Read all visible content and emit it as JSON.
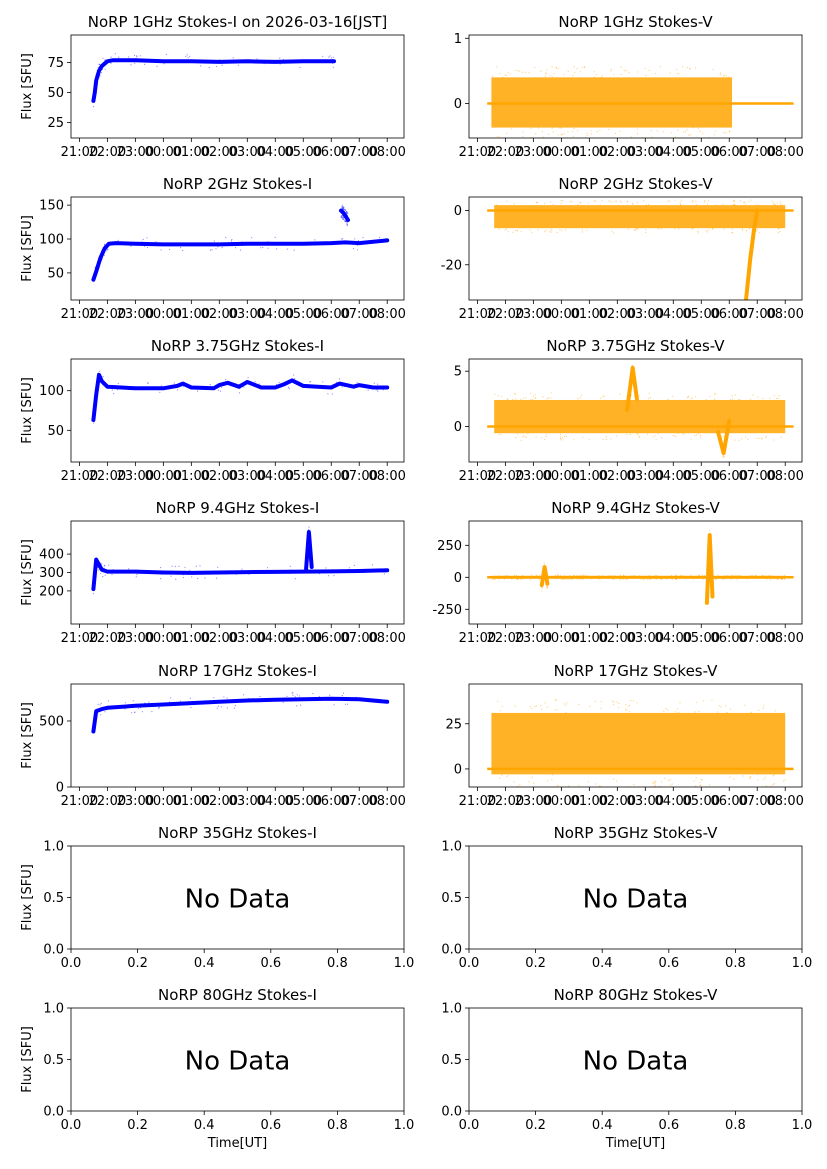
{
  "figure": {
    "xlabel_bottom": "Time[UT]",
    "no_data_text": "No Data"
  },
  "chart_data": [
    {
      "id": "p1i",
      "type": "scatter",
      "title": "NoRP 1GHz Stokes-I on 2026-03-16[JST]",
      "ylabel": "Flux [SFU]",
      "xlabel": "",
      "ylim": [
        12,
        98
      ],
      "yticks": [
        25,
        50,
        75
      ],
      "xlim": [
        20.7,
        32.6
      ],
      "xticks": [
        21,
        22,
        23,
        24,
        25,
        26,
        27,
        28,
        29,
        30,
        31,
        32
      ],
      "xticklabels": [
        "21:00",
        "22:00",
        "23:00",
        "00:00",
        "01:00",
        "02:00",
        "03:00",
        "04:00",
        "05:00",
        "06:00",
        "07:00",
        "08:00"
      ],
      "x_range": [
        21.5,
        30.1
      ],
      "color": "#0000ff",
      "has_data": true,
      "series": [
        {
          "x": [
            21.5,
            21.55,
            21.6,
            21.7,
            21.8,
            21.9,
            22.0,
            22.2,
            22.5,
            23.0,
            24.0,
            25.0,
            26.0,
            27.0,
            28.0,
            29.0,
            30.0,
            30.1
          ],
          "y": [
            43,
            50,
            60,
            68,
            72,
            74,
            76,
            77,
            77,
            77,
            76,
            76,
            75.5,
            76,
            75.5,
            76,
            76,
            76
          ]
        }
      ]
    },
    {
      "id": "p1v",
      "type": "scatter",
      "title": "NoRP 1GHz Stokes-V",
      "ylabel": "",
      "xlabel": "",
      "ylim": [
        -0.53,
        1.05
      ],
      "yticks": [
        0,
        1
      ],
      "xlim": [
        20.7,
        32.6
      ],
      "xticks": [
        21,
        22,
        23,
        24,
        25,
        26,
        27,
        28,
        29,
        30,
        31,
        32
      ],
      "xticklabels": [
        "21:00",
        "22:00",
        "23:00",
        "00:00",
        "01:00",
        "02:00",
        "03:00",
        "04:00",
        "05:00",
        "06:00",
        "07:00",
        "08:00"
      ],
      "x_range": [
        21.5,
        30.1
      ],
      "color": "#ffa500",
      "has_data": true,
      "series": [
        {
          "x": [
            21.5,
            30.1
          ],
          "y": [
            0.4,
            0.4
          ],
          "y_low": [
            -0.37,
            -0.37
          ],
          "baseline": 0,
          "baseline_x": [
            21.35,
            32.3
          ]
        }
      ]
    },
    {
      "id": "p2i",
      "type": "scatter",
      "title": "NoRP 2GHz Stokes-I",
      "ylabel": "Flux [SFU]",
      "xlabel": "",
      "ylim": [
        10,
        162
      ],
      "yticks": [
        50,
        100,
        150
      ],
      "xlim": [
        20.7,
        32.6
      ],
      "xticks": [
        21,
        22,
        23,
        24,
        25,
        26,
        27,
        28,
        29,
        30,
        31,
        32
      ],
      "xticklabels": [
        "21:00",
        "22:00",
        "23:00",
        "00:00",
        "01:00",
        "02:00",
        "03:00",
        "04:00",
        "05:00",
        "06:00",
        "07:00",
        "08:00"
      ],
      "x_range": [
        21.5,
        32.0
      ],
      "color": "#0000ff",
      "has_data": true,
      "series": [
        {
          "x": [
            21.5,
            21.6,
            21.75,
            21.9,
            22.05,
            22.3,
            23.0,
            24.0,
            25.0,
            26.0,
            27.0,
            28.0,
            29.0,
            30.0,
            30.5,
            31.0,
            32.0
          ],
          "y": [
            40,
            52,
            72,
            86,
            93,
            94,
            93,
            92,
            92,
            92,
            93,
            93,
            93,
            94,
            95,
            94,
            98
          ]
        },
        {
          "x": [
            30.35,
            30.45,
            30.6
          ],
          "y": [
            142,
            138,
            128
          ]
        }
      ]
    },
    {
      "id": "p2v",
      "type": "scatter",
      "title": "NoRP 2GHz Stokes-V",
      "ylabel": "",
      "xlabel": "",
      "ylim": [
        -33,
        5
      ],
      "yticks": [
        -20,
        0
      ],
      "xlim": [
        20.7,
        32.6
      ],
      "xticks": [
        21,
        22,
        23,
        24,
        25,
        26,
        27,
        28,
        29,
        30,
        31,
        32
      ],
      "xticklabels": [
        "21:00",
        "22:00",
        "23:00",
        "00:00",
        "01:00",
        "02:00",
        "03:00",
        "04:00",
        "05:00",
        "06:00",
        "07:00",
        "08:00"
      ],
      "x_range": [
        21.6,
        32.0
      ],
      "color": "#ffa500",
      "has_data": true,
      "series": [
        {
          "x": [
            21.6,
            32.0
          ],
          "y": [
            2,
            2
          ],
          "y_low": [
            -6.5,
            -6.5
          ],
          "baseline": 0,
          "baseline_x": [
            21.35,
            32.3
          ]
        },
        {
          "x": [
            30.6,
            30.75,
            30.9,
            31.0
          ],
          "y": [
            -33,
            -18,
            -6,
            0
          ]
        }
      ]
    },
    {
      "id": "p3i",
      "type": "scatter",
      "title": "NoRP 3.75GHz Stokes-I",
      "ylabel": "Flux [SFU]",
      "xlabel": "",
      "ylim": [
        10,
        140
      ],
      "yticks": [
        50,
        100
      ],
      "xlim": [
        20.7,
        32.6
      ],
      "xticks": [
        21,
        22,
        23,
        24,
        25,
        26,
        27,
        28,
        29,
        30,
        31,
        32
      ],
      "xticklabels": [
        "21:00",
        "22:00",
        "23:00",
        "00:00",
        "01:00",
        "02:00",
        "03:00",
        "04:00",
        "05:00",
        "06:00",
        "07:00",
        "08:00"
      ],
      "x_range": [
        21.5,
        32.0
      ],
      "color": "#0000ff",
      "has_data": true,
      "series": [
        {
          "x": [
            21.5,
            21.6,
            21.7,
            21.8,
            22.0,
            22.5,
            23.0,
            24.0,
            24.5,
            24.7,
            25.0,
            25.8,
            26.0,
            26.3,
            26.7,
            27.0,
            27.5,
            28.0,
            28.3,
            28.6,
            29.0,
            29.5,
            30.0,
            30.3,
            30.8,
            31.0,
            31.5,
            32.0
          ],
          "y": [
            63,
            95,
            120,
            112,
            105,
            104,
            103,
            103,
            106,
            109,
            104,
            103,
            107,
            110,
            105,
            111,
            104,
            104,
            108,
            113,
            106,
            105,
            104,
            109,
            105,
            107,
            104,
            104
          ]
        }
      ]
    },
    {
      "id": "p3v",
      "type": "scatter",
      "title": "NoRP 3.75GHz Stokes-V",
      "ylabel": "",
      "xlabel": "",
      "ylim": [
        -3.2,
        6.1
      ],
      "yticks": [
        0,
        5
      ],
      "xlim": [
        20.7,
        32.6
      ],
      "xticks": [
        21,
        22,
        23,
        24,
        25,
        26,
        27,
        28,
        29,
        30,
        31,
        32
      ],
      "xticklabels": [
        "21:00",
        "22:00",
        "23:00",
        "00:00",
        "01:00",
        "02:00",
        "03:00",
        "04:00",
        "05:00",
        "06:00",
        "07:00",
        "08:00"
      ],
      "x_range": [
        21.6,
        32.0
      ],
      "color": "#ffa500",
      "has_data": true,
      "series": [
        {
          "x": [
            21.6,
            32.0
          ],
          "y": [
            2.4,
            2.4
          ],
          "y_low": [
            -0.6,
            -0.6
          ],
          "baseline": 0,
          "baseline_x": [
            21.35,
            32.3
          ]
        },
        {
          "x": [
            26.35,
            26.55,
            26.7
          ],
          "y": [
            1.5,
            5.3,
            2.5
          ]
        },
        {
          "x": [
            29.6,
            29.8,
            30.0
          ],
          "y": [
            -0.5,
            -2.4,
            0.5
          ]
        }
      ]
    },
    {
      "id": "p4i",
      "type": "scatter",
      "title": "NoRP 9.4GHz Stokes-I",
      "ylabel": "Flux [SFU]",
      "xlabel": "",
      "ylim": [
        20,
        580
      ],
      "yticks": [
        200,
        300,
        400
      ],
      "xlim": [
        20.7,
        32.6
      ],
      "xticks": [
        21,
        22,
        23,
        24,
        25,
        26,
        27,
        28,
        29,
        30,
        31,
        32
      ],
      "xticklabels": [
        "21:00",
        "22:00",
        "23:00",
        "00:00",
        "01:00",
        "02:00",
        "03:00",
        "04:00",
        "05:00",
        "06:00",
        "07:00",
        "08:00"
      ],
      "x_range": [
        21.5,
        32.0
      ],
      "color": "#0000ff",
      "has_data": true,
      "series": [
        {
          "x": [
            21.5,
            21.6,
            21.8,
            22.0,
            23.0,
            24.0,
            25.0,
            26.0,
            27.0,
            28.0,
            29.0,
            30.0,
            31.0,
            32.0
          ],
          "y": [
            210,
            370,
            315,
            305,
            305,
            300,
            298,
            300,
            302,
            303,
            305,
            306,
            308,
            312
          ]
        },
        {
          "x": [
            29.1,
            29.2,
            29.3
          ],
          "y": [
            320,
            520,
            330
          ]
        }
      ]
    },
    {
      "id": "p4v",
      "type": "scatter",
      "title": "NoRP 9.4GHz Stokes-V",
      "ylabel": "",
      "xlabel": "",
      "ylim": [
        -365,
        440
      ],
      "yticks": [
        -250,
        0,
        250
      ],
      "xlim": [
        20.7,
        32.6
      ],
      "xticks": [
        21,
        22,
        23,
        24,
        25,
        26,
        27,
        28,
        29,
        30,
        31,
        32
      ],
      "xticklabels": [
        "21:00",
        "22:00",
        "23:00",
        "00:00",
        "01:00",
        "02:00",
        "03:00",
        "04:00",
        "05:00",
        "06:00",
        "07:00",
        "08:00"
      ],
      "x_range": [
        21.5,
        32.0
      ],
      "color": "#ffa500",
      "has_data": true,
      "series": [
        {
          "x": [
            21.5,
            32.0
          ],
          "y": [
            12,
            12
          ],
          "y_low": [
            -12,
            -12
          ],
          "baseline": 0,
          "baseline_x": [
            21.35,
            32.3
          ]
        },
        {
          "x": [
            23.3,
            23.4,
            23.5
          ],
          "y": [
            -60,
            80,
            -50
          ]
        },
        {
          "x": [
            29.2,
            29.3,
            29.4
          ],
          "y": [
            -200,
            330,
            -150
          ]
        }
      ]
    },
    {
      "id": "p5i",
      "type": "scatter",
      "title": "NoRP 17GHz Stokes-I",
      "ylabel": "Flux [SFU]",
      "xlabel": "",
      "ylim": [
        0,
        780
      ],
      "yticks": [
        0,
        500
      ],
      "xlim": [
        20.7,
        32.6
      ],
      "xticks": [
        21,
        22,
        23,
        24,
        25,
        26,
        27,
        28,
        29,
        30,
        31,
        32
      ],
      "xticklabels": [
        "21:00",
        "22:00",
        "23:00",
        "00:00",
        "01:00",
        "02:00",
        "03:00",
        "04:00",
        "05:00",
        "06:00",
        "07:00",
        "08:00"
      ],
      "x_range": [
        21.5,
        32.0
      ],
      "color": "#0000ff",
      "has_data": true,
      "series": [
        {
          "x": [
            21.5,
            21.6,
            21.8,
            22.0,
            23.0,
            24.0,
            25.0,
            26.0,
            27.0,
            28.0,
            29.0,
            30.0,
            31.0,
            32.0
          ],
          "y": [
            420,
            575,
            590,
            600,
            615,
            625,
            635,
            645,
            655,
            660,
            665,
            668,
            665,
            645
          ]
        }
      ]
    },
    {
      "id": "p5v",
      "type": "scatter",
      "title": "NoRP 17GHz Stokes-V",
      "ylabel": "",
      "xlabel": "",
      "ylim": [
        -10,
        47
      ],
      "yticks": [
        0,
        25
      ],
      "xlim": [
        20.7,
        32.6
      ],
      "xticks": [
        21,
        22,
        23,
        24,
        25,
        26,
        27,
        28,
        29,
        30,
        31,
        32
      ],
      "xticklabels": [
        "21:00",
        "22:00",
        "23:00",
        "00:00",
        "01:00",
        "02:00",
        "03:00",
        "04:00",
        "05:00",
        "06:00",
        "07:00",
        "08:00"
      ],
      "x_range": [
        21.5,
        32.0
      ],
      "color": "#ffa500",
      "has_data": true,
      "series": [
        {
          "x": [
            21.5,
            32.0
          ],
          "y": [
            31,
            31
          ],
          "y_low": [
            -3,
            -3
          ],
          "baseline": 0,
          "baseline_x": [
            21.35,
            32.3
          ]
        }
      ]
    },
    {
      "id": "p6i",
      "type": "scatter",
      "title": "NoRP 35GHz Stokes-I",
      "ylabel": "Flux [SFU]",
      "xlabel": "",
      "ylim": [
        0,
        1
      ],
      "yticks": [
        0,
        0.5,
        1
      ],
      "xlim": [
        0,
        1
      ],
      "xticks": [
        0,
        0.2,
        0.4,
        0.6,
        0.8,
        1
      ],
      "xticklabels": [
        "0.0",
        "0.2",
        "0.4",
        "0.6",
        "0.8",
        "1.0"
      ],
      "yticklabels": [
        "0.0",
        "0.5",
        "1.0"
      ],
      "has_data": false
    },
    {
      "id": "p6v",
      "type": "scatter",
      "title": "NoRP 35GHz Stokes-V",
      "ylabel": "",
      "xlabel": "",
      "ylim": [
        0,
        1
      ],
      "yticks": [
        0,
        0.5,
        1
      ],
      "xlim": [
        0,
        1
      ],
      "xticks": [
        0,
        0.2,
        0.4,
        0.6,
        0.8,
        1
      ],
      "xticklabels": [
        "0.0",
        "0.2",
        "0.4",
        "0.6",
        "0.8",
        "1.0"
      ],
      "yticklabels": [
        "0.0",
        "0.5",
        "1.0"
      ],
      "has_data": false
    },
    {
      "id": "p7i",
      "type": "scatter",
      "title": "NoRP 80GHz Stokes-I",
      "ylabel": "Flux [SFU]",
      "xlabel": "Time[UT]",
      "ylim": [
        0,
        1
      ],
      "yticks": [
        0,
        0.5,
        1
      ],
      "xlim": [
        0,
        1
      ],
      "xticks": [
        0,
        0.2,
        0.4,
        0.6,
        0.8,
        1
      ],
      "xticklabels": [
        "0.0",
        "0.2",
        "0.4",
        "0.6",
        "0.8",
        "1.0"
      ],
      "yticklabels": [
        "0.0",
        "0.5",
        "1.0"
      ],
      "has_data": false
    },
    {
      "id": "p7v",
      "type": "scatter",
      "title": "NoRP 80GHz Stokes-V",
      "ylabel": "",
      "xlabel": "Time[UT]",
      "ylim": [
        0,
        1
      ],
      "yticks": [
        0,
        0.5,
        1
      ],
      "xlim": [
        0,
        1
      ],
      "xticks": [
        0,
        0.2,
        0.4,
        0.6,
        0.8,
        1
      ],
      "xticklabels": [
        "0.0",
        "0.2",
        "0.4",
        "0.6",
        "0.8",
        "1.0"
      ],
      "yticklabels": [
        "0.0",
        "0.5",
        "1.0"
      ],
      "has_data": false
    }
  ]
}
